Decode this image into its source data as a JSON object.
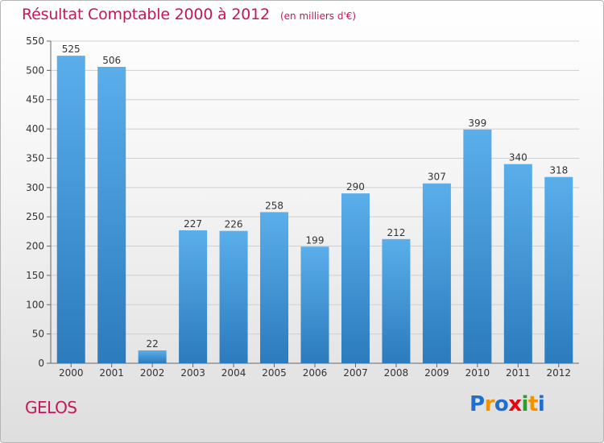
{
  "chart_data": {
    "type": "bar",
    "title": "Résultat Comptable 2000 à 2012",
    "subtitle": "(en milliers d'€)",
    "categories": [
      "2000",
      "2001",
      "2002",
      "2003",
      "2004",
      "2005",
      "2006",
      "2007",
      "2008",
      "2009",
      "2010",
      "2011",
      "2012"
    ],
    "values": [
      525,
      506,
      22,
      227,
      226,
      258,
      199,
      290,
      212,
      307,
      399,
      340,
      318
    ],
    "ylim": [
      0,
      550
    ],
    "yticks": [
      0,
      50,
      100,
      150,
      200,
      250,
      300,
      350,
      400,
      450,
      500,
      550
    ],
    "grid": true,
    "bar_color_top": "#5aaeea",
    "bar_color_bottom": "#2b7bbd"
  },
  "footer": {
    "place": "GELOS",
    "logo_text": "Proxiti",
    "logo_colors": [
      "#1f6fd1",
      "#f39200",
      "#1f6fd1",
      "#e30613",
      "#2a9d2a",
      "#f39200",
      "#1f6fd1"
    ]
  }
}
